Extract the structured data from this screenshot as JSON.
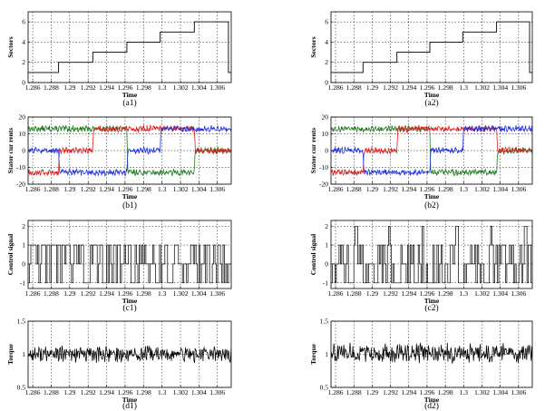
{
  "chart_data": [
    {
      "panel": "a1",
      "type": "line",
      "caption": "(a1)",
      "xlabel": "Time",
      "ylabel": "Sectors",
      "xlim": [
        1.2855,
        1.3075
      ],
      "ylim": [
        0,
        7
      ],
      "yticks": [
        0,
        2,
        4,
        6
      ],
      "xticks": [
        "1.286",
        "1.288",
        "1.29",
        "1.292",
        "1.294",
        "1.296",
        "1.298",
        "1.3",
        "1.302",
        "1.304",
        "1.306"
      ],
      "grid": true,
      "series": [
        {
          "color": "#000000",
          "x": [
            1.2855,
            1.2888,
            1.2888,
            1.2925,
            1.2925,
            1.2962,
            1.2962,
            1.2998,
            1.2998,
            1.3035,
            1.3035,
            1.3072,
            1.3072,
            1.3075
          ],
          "y": [
            1,
            1,
            2,
            2,
            3,
            3,
            4,
            4,
            5,
            5,
            6,
            6,
            1,
            1
          ]
        }
      ]
    },
    {
      "panel": "a2",
      "type": "line",
      "caption": "(a2)",
      "xlabel": "Time",
      "ylabel": "Sectors",
      "xlim": [
        1.2855,
        1.3075
      ],
      "ylim": [
        0,
        7
      ],
      "yticks": [
        0,
        2,
        4,
        6
      ],
      "xticks": [
        "1.286",
        "1.288",
        "1.29",
        "1.292",
        "1.294",
        "1.296",
        "1.298",
        "1.3",
        "1.302",
        "1.304",
        "1.306"
      ],
      "grid": true,
      "series": [
        {
          "color": "#000000",
          "x": [
            1.2855,
            1.289,
            1.289,
            1.2927,
            1.2927,
            1.2963,
            1.2963,
            1.2999,
            1.2999,
            1.3036,
            1.3036,
            1.3072,
            1.3072,
            1.3075
          ],
          "y": [
            1,
            1,
            2,
            2,
            3,
            3,
            4,
            4,
            5,
            5,
            6,
            6,
            1,
            1
          ]
        }
      ]
    },
    {
      "panel": "b1",
      "type": "line",
      "caption": "(b1)",
      "xlabel": "Time",
      "ylabel": "Stator cur rents",
      "xlim": [
        1.2855,
        1.3075
      ],
      "ylim": [
        -20,
        20
      ],
      "yticks": [
        -20,
        -10,
        0,
        10,
        20
      ],
      "xticks": [
        "1.286",
        "1.288",
        "1.29",
        "1.292",
        "1.294",
        "1.296",
        "1.298",
        "1.3",
        "1.302",
        "1.304",
        "1.306"
      ],
      "grid": true,
      "series": [
        {
          "color": "#1f7a1f",
          "x": [
            1.2855,
            1.2962,
            1.2963,
            1.3035,
            1.3036,
            1.3075
          ],
          "y": [
            13,
            13,
            -13,
            -13,
            0,
            0
          ]
        },
        {
          "color": "#e02020",
          "x": [
            1.2855,
            1.2888,
            1.2889,
            1.2925,
            1.2926,
            1.3035,
            1.3036,
            1.3075
          ],
          "y": [
            -13,
            -13,
            0,
            0,
            13,
            13,
            0,
            0
          ]
        },
        {
          "color": "#2030e0",
          "x": [
            1.2855,
            1.2888,
            1.2889,
            1.2962,
            1.2963,
            1.2998,
            1.2999,
            1.3075
          ],
          "y": [
            0,
            0,
            -13,
            -13,
            0,
            0,
            13,
            13
          ]
        }
      ]
    },
    {
      "panel": "b2",
      "type": "line",
      "caption": "(b2)",
      "xlabel": "Time",
      "ylabel": "Stator cur rents",
      "xlim": [
        1.2855,
        1.3075
      ],
      "ylim": [
        -20,
        20
      ],
      "yticks": [
        -20,
        -10,
        0,
        10,
        20
      ],
      "xticks": [
        "1.286",
        "1.288",
        "1.29",
        "1.292",
        "1.294",
        "1.296",
        "1.298",
        "1.3",
        "1.302",
        "1.304",
        "1.306"
      ],
      "grid": true,
      "series": [
        {
          "color": "#1f7a1f",
          "x": [
            1.2855,
            1.2963,
            1.2964,
            1.3036,
            1.3037,
            1.3075
          ],
          "y": [
            13,
            13,
            -13,
            -13,
            0,
            0
          ]
        },
        {
          "color": "#e02020",
          "x": [
            1.2855,
            1.289,
            1.2891,
            1.2927,
            1.2928,
            1.3036,
            1.3037,
            1.3075
          ],
          "y": [
            -13,
            -13,
            0,
            0,
            13,
            13,
            0,
            0
          ]
        },
        {
          "color": "#2030e0",
          "x": [
            1.2855,
            1.289,
            1.2891,
            1.2963,
            1.2964,
            1.2999,
            1.3,
            1.3075
          ],
          "y": [
            0,
            0,
            -13,
            -13,
            0,
            0,
            13,
            13
          ]
        }
      ]
    },
    {
      "panel": "c1",
      "type": "line",
      "caption": "(c1)",
      "xlabel": "Time",
      "ylabel": "Control signal",
      "xlim": [
        1.2855,
        1.3075
      ],
      "ylim": [
        -1.3,
        2.3
      ],
      "yticks": [
        -1,
        0,
        1,
        2
      ],
      "xticks": [
        "1.286",
        "1.288",
        "1.29",
        "1.292",
        "1.294",
        "1.296",
        "1.298",
        "1.3",
        "1.302",
        "1.304",
        "1.306"
      ],
      "grid": true,
      "signal_levels": [
        -1,
        0,
        1
      ],
      "series": [
        {
          "color": "#000000",
          "signal": "switching between -1, 0 and 1"
        }
      ]
    },
    {
      "panel": "c2",
      "type": "line",
      "caption": "(c2)",
      "xlabel": "Time",
      "ylabel": "Control signal",
      "xlim": [
        1.2855,
        1.3075
      ],
      "ylim": [
        -1.3,
        2.3
      ],
      "yticks": [
        -1,
        0,
        1,
        2
      ],
      "xticks": [
        "1.286",
        "1.288",
        "1.29",
        "1.292",
        "1.294",
        "1.296",
        "1.298",
        "1.3",
        "1.302",
        "1.304",
        "1.306"
      ],
      "grid": true,
      "signal_levels": [
        -1,
        0,
        1,
        2
      ],
      "spikes_x": [
        1.2882,
        1.2918,
        1.2955,
        1.2992,
        1.303,
        1.3067
      ],
      "series": [
        {
          "color": "#000000",
          "signal": "switching between -1, 0 and 1, with occasional spikes to 2"
        }
      ]
    },
    {
      "panel": "d1",
      "type": "line",
      "caption": "(d1)",
      "xlabel": "Time",
      "ylabel": "Torque",
      "xlim": [
        1.2855,
        1.3075
      ],
      "ylim": [
        0.5,
        1.5
      ],
      "yticks": [
        0.5,
        1,
        1.5
      ],
      "xticks": [
        "1.286",
        "1.288",
        "1.29",
        "1.292",
        "1.294",
        "1.296",
        "1.298",
        "1.3",
        "1.302",
        "1.304",
        "1.306"
      ],
      "grid": true,
      "mean": 1.0,
      "ripple": 0.1,
      "series": [
        {
          "color": "#000000",
          "signal": "torque ripple around 1"
        }
      ]
    },
    {
      "panel": "d2",
      "type": "line",
      "caption": "(d2)",
      "xlabel": "Time",
      "ylabel": "Torque",
      "xlim": [
        1.2855,
        1.3075
      ],
      "ylim": [
        0.5,
        1.5
      ],
      "yticks": [
        0.5,
        1,
        1.5
      ],
      "xticks": [
        "1.286",
        "1.288",
        "1.29",
        "1.292",
        "1.294",
        "1.296",
        "1.298",
        "1.3",
        "1.302",
        "1.304",
        "1.306"
      ],
      "grid": true,
      "mean": 1.02,
      "ripple": 0.12,
      "series": [
        {
          "color": "#000000",
          "signal": "torque ripple around 1"
        }
      ]
    }
  ]
}
